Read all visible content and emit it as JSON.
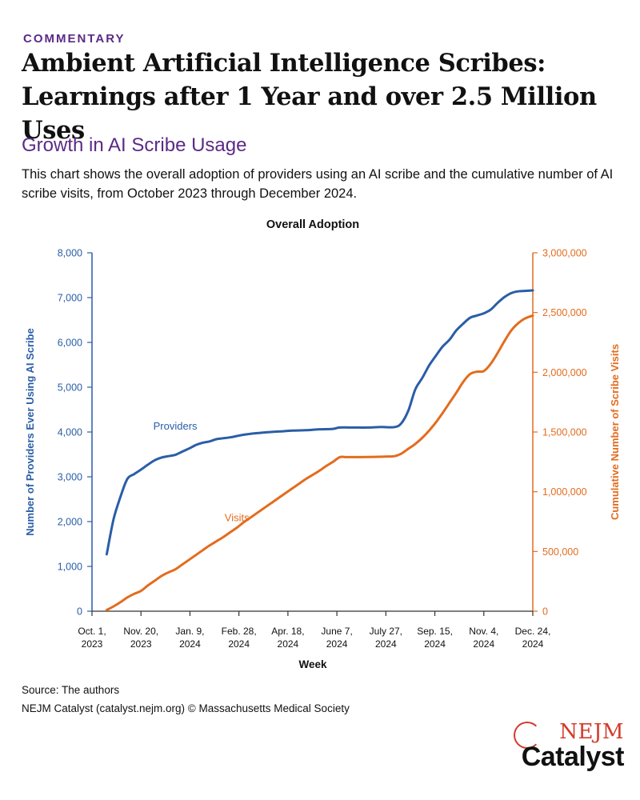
{
  "header": {
    "kicker": "COMMENTARY",
    "title_line1": "Ambient Artificial Intelligence Scribes:",
    "title_line2": "Learnings after 1 Year and over 2.5 Million Uses"
  },
  "section": {
    "title": "Growth in AI Scribe Usage",
    "description": "This chart shows the overall adoption of providers using an AI scribe and the cumulative number of AI scribe visits, from October 2023 through December 2024."
  },
  "chart_data": {
    "type": "line",
    "title": "Overall Adoption",
    "xlabel": "Week",
    "ylabel_left": "Number of Providers Ever Using AI Scribe",
    "ylabel_right": "Cumulative Number of Scribe Visits",
    "x_ticks": [
      {
        "line1": "Oct. 1,",
        "line2": "2023",
        "date": "2023-10-01"
      },
      {
        "line1": "Nov. 20,",
        "line2": "2023",
        "date": "2023-11-20"
      },
      {
        "line1": "Jan. 9,",
        "line2": "2024",
        "date": "2024-01-09"
      },
      {
        "line1": "Feb. 28,",
        "line2": "2024",
        "date": "2024-02-28"
      },
      {
        "line1": "Apr. 18,",
        "line2": "2024",
        "date": "2024-04-18"
      },
      {
        "line1": "June 7,",
        "line2": "2024",
        "date": "2024-06-07"
      },
      {
        "line1": "July 27,",
        "line2": "2024",
        "date": "2024-07-27"
      },
      {
        "line1": "Sep. 15,",
        "line2": "2024",
        "date": "2024-09-15"
      },
      {
        "line1": "Nov. 4,",
        "line2": "2024",
        "date": "2024-11-04"
      },
      {
        "line1": "Dec. 24,",
        "line2": "2024",
        "date": "2024-12-24"
      }
    ],
    "xlim": [
      "2023-10-01",
      "2024-12-24"
    ],
    "y_left": {
      "lim": [
        0,
        8000
      ],
      "ticks": [
        0,
        1000,
        2000,
        3000,
        4000,
        5000,
        6000,
        7000,
        8000
      ],
      "tick_labels": [
        "0",
        "1,000",
        "2,000",
        "3,000",
        "4,000",
        "5,000",
        "6,000",
        "7,000",
        "8,000"
      ]
    },
    "y_right": {
      "lim": [
        0,
        3000000
      ],
      "ticks": [
        0,
        500000,
        1000000,
        1500000,
        2000000,
        2500000,
        3000000
      ],
      "tick_labels": [
        "0",
        "500,000",
        "1,000,000",
        "1,500,000",
        "2,000,000",
        "2,500,000",
        "3,000,000"
      ]
    },
    "series": [
      {
        "name": "Providers",
        "axis": "left",
        "color": "#2a5ea6",
        "points": [
          [
            "2023-10-16",
            1270
          ],
          [
            "2023-10-23",
            2050
          ],
          [
            "2023-10-30",
            2550
          ],
          [
            "2023-11-06",
            2950
          ],
          [
            "2023-11-13",
            3060
          ],
          [
            "2023-11-20",
            3160
          ],
          [
            "2023-11-27",
            3270
          ],
          [
            "2023-12-04",
            3370
          ],
          [
            "2023-12-11",
            3430
          ],
          [
            "2023-12-18",
            3460
          ],
          [
            "2023-12-25",
            3490
          ],
          [
            "2024-01-01",
            3560
          ],
          [
            "2024-01-08",
            3630
          ],
          [
            "2024-01-15",
            3710
          ],
          [
            "2024-01-22",
            3760
          ],
          [
            "2024-01-29",
            3790
          ],
          [
            "2024-02-05",
            3840
          ],
          [
            "2024-02-12",
            3860
          ],
          [
            "2024-02-19",
            3880
          ],
          [
            "2024-02-26",
            3910
          ],
          [
            "2024-03-04",
            3940
          ],
          [
            "2024-03-11",
            3960
          ],
          [
            "2024-03-25",
            3990
          ],
          [
            "2024-04-08",
            4010
          ],
          [
            "2024-04-22",
            4030
          ],
          [
            "2024-05-06",
            4040
          ],
          [
            "2024-05-20",
            4060
          ],
          [
            "2024-06-03",
            4070
          ],
          [
            "2024-06-10",
            4100
          ],
          [
            "2024-06-24",
            4100
          ],
          [
            "2024-07-08",
            4100
          ],
          [
            "2024-07-22",
            4110
          ],
          [
            "2024-08-05",
            4110
          ],
          [
            "2024-08-12",
            4200
          ],
          [
            "2024-08-19",
            4480
          ],
          [
            "2024-08-26",
            4950
          ],
          [
            "2024-09-02",
            5200
          ],
          [
            "2024-09-09",
            5480
          ],
          [
            "2024-09-16",
            5700
          ],
          [
            "2024-09-23",
            5910
          ],
          [
            "2024-09-30",
            6060
          ],
          [
            "2024-10-07",
            6270
          ],
          [
            "2024-10-14",
            6420
          ],
          [
            "2024-10-21",
            6550
          ],
          [
            "2024-10-28",
            6600
          ],
          [
            "2024-11-04",
            6650
          ],
          [
            "2024-11-11",
            6730
          ],
          [
            "2024-11-18",
            6880
          ],
          [
            "2024-11-25",
            7010
          ],
          [
            "2024-12-02",
            7100
          ],
          [
            "2024-12-09",
            7140
          ],
          [
            "2024-12-16",
            7150
          ],
          [
            "2024-12-24",
            7160
          ]
        ]
      },
      {
        "name": "Visits",
        "axis": "right",
        "color": "#e36c1e",
        "points": [
          [
            "2023-10-16",
            10000
          ],
          [
            "2023-10-23",
            40000
          ],
          [
            "2023-10-30",
            75000
          ],
          [
            "2023-11-06",
            115000
          ],
          [
            "2023-11-13",
            145000
          ],
          [
            "2023-11-20",
            170000
          ],
          [
            "2023-11-27",
            215000
          ],
          [
            "2023-12-04",
            255000
          ],
          [
            "2023-12-11",
            295000
          ],
          [
            "2023-12-18",
            325000
          ],
          [
            "2023-12-25",
            350000
          ],
          [
            "2024-01-01",
            390000
          ],
          [
            "2024-01-08",
            430000
          ],
          [
            "2024-01-15",
            470000
          ],
          [
            "2024-01-22",
            510000
          ],
          [
            "2024-01-29",
            550000
          ],
          [
            "2024-02-05",
            585000
          ],
          [
            "2024-02-12",
            620000
          ],
          [
            "2024-02-19",
            660000
          ],
          [
            "2024-02-26",
            700000
          ],
          [
            "2024-03-04",
            745000
          ],
          [
            "2024-03-11",
            785000
          ],
          [
            "2024-03-18",
            825000
          ],
          [
            "2024-03-25",
            865000
          ],
          [
            "2024-04-01",
            905000
          ],
          [
            "2024-04-08",
            945000
          ],
          [
            "2024-04-15",
            985000
          ],
          [
            "2024-04-22",
            1025000
          ],
          [
            "2024-04-29",
            1065000
          ],
          [
            "2024-05-06",
            1105000
          ],
          [
            "2024-05-13",
            1140000
          ],
          [
            "2024-05-20",
            1175000
          ],
          [
            "2024-05-27",
            1215000
          ],
          [
            "2024-06-03",
            1250000
          ],
          [
            "2024-06-10",
            1290000
          ],
          [
            "2024-06-17",
            1290000
          ],
          [
            "2024-07-01",
            1290000
          ],
          [
            "2024-07-15",
            1292000
          ],
          [
            "2024-07-29",
            1295000
          ],
          [
            "2024-08-05",
            1298000
          ],
          [
            "2024-08-12",
            1320000
          ],
          [
            "2024-08-19",
            1360000
          ],
          [
            "2024-08-26",
            1400000
          ],
          [
            "2024-09-02",
            1450000
          ],
          [
            "2024-09-09",
            1510000
          ],
          [
            "2024-09-16",
            1580000
          ],
          [
            "2024-09-23",
            1660000
          ],
          [
            "2024-09-30",
            1745000
          ],
          [
            "2024-10-07",
            1830000
          ],
          [
            "2024-10-14",
            1920000
          ],
          [
            "2024-10-21",
            1985000
          ],
          [
            "2024-10-28",
            2005000
          ],
          [
            "2024-11-04",
            2010000
          ],
          [
            "2024-11-11",
            2070000
          ],
          [
            "2024-11-18",
            2160000
          ],
          [
            "2024-11-25",
            2260000
          ],
          [
            "2024-12-02",
            2350000
          ],
          [
            "2024-12-09",
            2410000
          ],
          [
            "2024-12-16",
            2450000
          ],
          [
            "2024-12-24",
            2475000
          ]
        ]
      }
    ],
    "annotations": [
      {
        "text": "Providers",
        "series": "Providers",
        "at": "2023-12-25",
        "value": 4050
      },
      {
        "text": "Visits",
        "series": "Visits",
        "at": "2024-02-26",
        "value": 755000
      }
    ],
    "legend": "inline labels"
  },
  "footer": {
    "source": "Source: The authors",
    "credit": "NEJM Catalyst (catalyst.nejm.org) © Massachusetts Medical Society"
  },
  "logo": {
    "line1": "NEJM",
    "line2": "Catalyst"
  }
}
